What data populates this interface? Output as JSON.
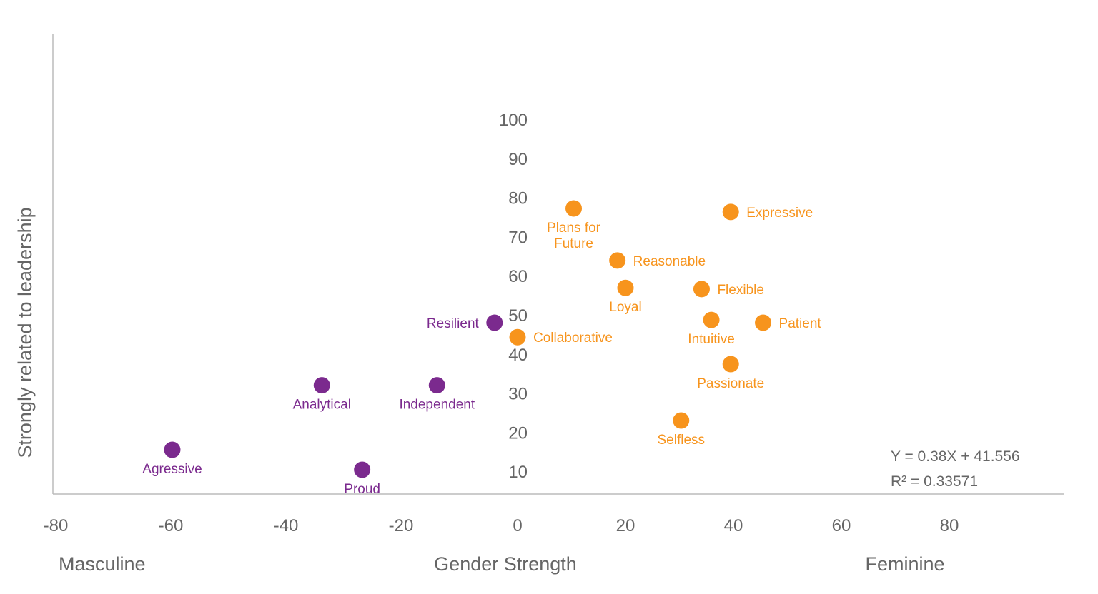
{
  "chart_data": {
    "type": "scatter",
    "xlabel": "Gender Strength",
    "ylabel": "Strongly related to leadership",
    "x_left_label": "Masculine",
    "x_right_label": "Feminine",
    "xticks": [
      -80,
      -60,
      -40,
      -20,
      0,
      20,
      40,
      60,
      80
    ],
    "yticks": [
      10,
      20,
      30,
      40,
      50,
      60,
      70,
      80,
      90,
      100
    ],
    "xlim": [
      -80,
      90
    ],
    "ylim": [
      0,
      100
    ],
    "grid": false,
    "colors": {
      "masculine": "#7b2a8e",
      "feminine": "#f7941d",
      "axis": "#bbbbbb",
      "text": "#666666"
    },
    "equation": "Y = 0.38X + 41.556",
    "r_squared": "R² = 0.33571",
    "points": [
      {
        "label": "Agressive",
        "x": -60,
        "y": 15.5,
        "group": "masculine",
        "label_pos": "below"
      },
      {
        "label": "Proud",
        "x": -27,
        "y": 10.4,
        "group": "masculine",
        "label_pos": "below"
      },
      {
        "label": "Analytical",
        "x": -34,
        "y": 32,
        "group": "masculine",
        "label_pos": "below"
      },
      {
        "label": "Independent",
        "x": -14,
        "y": 32,
        "group": "masculine",
        "label_pos": "below"
      },
      {
        "label": "Resilient",
        "x": -4,
        "y": 48,
        "group": "masculine",
        "label_pos": "left"
      },
      {
        "label": "Collaborative",
        "x": 0,
        "y": 44.3,
        "group": "feminine",
        "label_pos": "right"
      },
      {
        "label": "Plans for Future",
        "x": 10.4,
        "y": 77.2,
        "group": "feminine",
        "label_pos": "below"
      },
      {
        "label": "Reasonable",
        "x": 18.5,
        "y": 63.9,
        "group": "feminine",
        "label_pos": "right"
      },
      {
        "label": "Loyal",
        "x": 20,
        "y": 56.9,
        "group": "feminine",
        "label_pos": "below"
      },
      {
        "label": "Selfless",
        "x": 30.3,
        "y": 23,
        "group": "feminine",
        "label_pos": "below"
      },
      {
        "label": "Passionate",
        "x": 39.5,
        "y": 37.4,
        "group": "feminine",
        "label_pos": "below"
      },
      {
        "label": "Intuitive",
        "x": 35.9,
        "y": 48.7,
        "group": "feminine",
        "label_pos": "below"
      },
      {
        "label": "Flexible",
        "x": 34.1,
        "y": 56.6,
        "group": "feminine",
        "label_pos": "right"
      },
      {
        "label": "Expressive",
        "x": 39.5,
        "y": 76.3,
        "group": "feminine",
        "label_pos": "right"
      },
      {
        "label": "Patient",
        "x": 45.5,
        "y": 48,
        "group": "feminine",
        "label_pos": "right"
      }
    ]
  }
}
